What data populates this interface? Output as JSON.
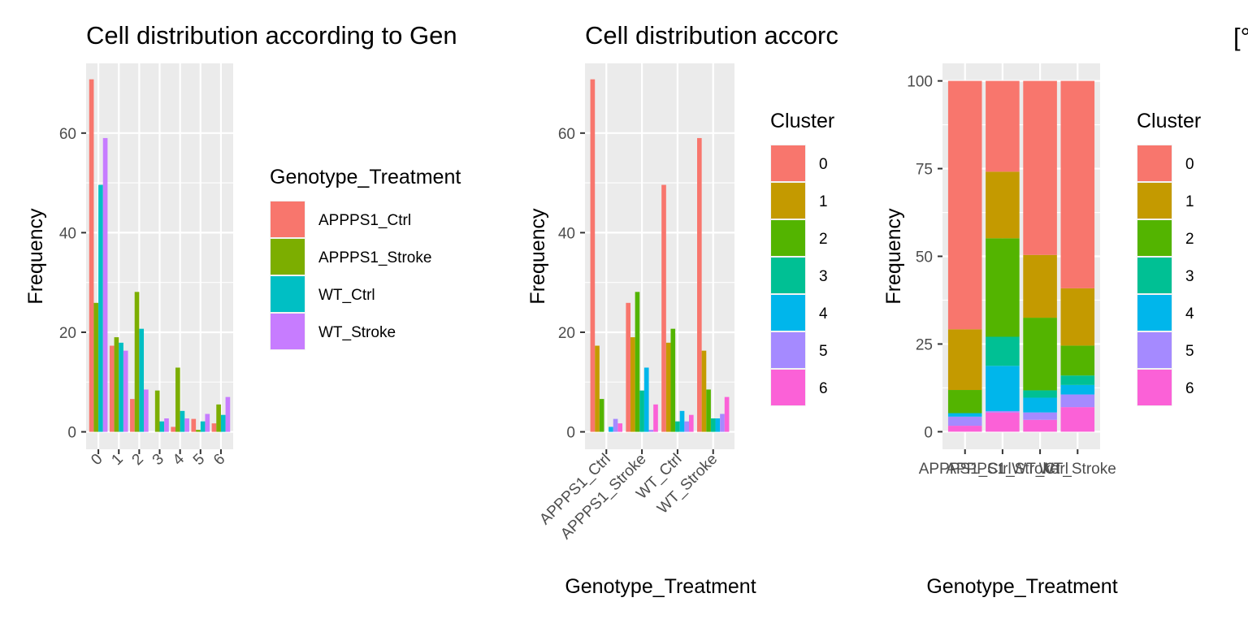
{
  "chart_data": [
    {
      "type": "bar",
      "position": "dodge",
      "title": "Cell distribution according to Gen",
      "xlabel": "",
      "ylabel": "Frequency",
      "ylim": [
        -3.5,
        74
      ],
      "yticks": [
        0,
        20,
        40,
        60
      ],
      "categories": [
        "0",
        "1",
        "2",
        "3",
        "4",
        "5",
        "6"
      ],
      "legend_title": "Genotype_Treatment",
      "series": [
        {
          "name": "APPPS1_Ctrl",
          "color": "#F8766D",
          "values": [
            70.8,
            17.3,
            6.6,
            0.0,
            1.0,
            2.6,
            1.7
          ]
        },
        {
          "name": "APPPS1_Stroke",
          "color": "#7CAE00",
          "values": [
            25.9,
            19.0,
            28.1,
            8.3,
            12.9,
            0.4,
            5.5
          ]
        },
        {
          "name": "WT_Ctrl",
          "color": "#00BFC4",
          "values": [
            49.6,
            17.9,
            20.7,
            2.1,
            4.2,
            2.1,
            3.4
          ]
        },
        {
          "name": "WT_Stroke",
          "color": "#C77CFF",
          "values": [
            59.0,
            16.3,
            8.5,
            2.7,
            2.7,
            3.6,
            7.0
          ]
        }
      ]
    },
    {
      "type": "bar",
      "position": "dodge",
      "title": "Cell distribution accorc",
      "xlabel": "Genotype_Treatment",
      "ylabel": "Frequency",
      "ylim": [
        -3.5,
        74
      ],
      "yticks": [
        0,
        20,
        40,
        60
      ],
      "categories": [
        "APPPS1_Ctrl",
        "APPPS1_Stroke",
        "WT_Ctrl",
        "WT_Stroke"
      ],
      "legend_title": "Cluster",
      "series": [
        {
          "name": "0",
          "color": "#F8766D",
          "values": [
            70.8,
            25.9,
            49.6,
            59.0
          ]
        },
        {
          "name": "1",
          "color": "#C49A00",
          "values": [
            17.3,
            19.0,
            17.9,
            16.3
          ]
        },
        {
          "name": "2",
          "color": "#53B400",
          "values": [
            6.6,
            28.1,
            20.7,
            8.5
          ]
        },
        {
          "name": "3",
          "color": "#00C094",
          "values": [
            0.0,
            8.3,
            2.1,
            2.7
          ]
        },
        {
          "name": "4",
          "color": "#00B6EB",
          "values": [
            1.0,
            12.9,
            4.2,
            2.7
          ]
        },
        {
          "name": "5",
          "color": "#A58AFF",
          "values": [
            2.6,
            0.4,
            2.1,
            3.6
          ]
        },
        {
          "name": "6",
          "color": "#FB61D7",
          "values": [
            1.7,
            5.5,
            3.4,
            7.0
          ]
        }
      ]
    },
    {
      "type": "bar",
      "position": "stack",
      "title": "",
      "xlabel": "Genotype_Treatment",
      "ylabel": "Frequency",
      "ylim": [
        -5,
        105
      ],
      "yticks": [
        0,
        25,
        50,
        75,
        100
      ],
      "categories": [
        "APPPS1_Ctrl",
        "APPPS1_Stroke",
        "WT_Ctrl",
        "WT_Stroke"
      ],
      "legend_title": "Cluster",
      "series": [
        {
          "name": "0",
          "color": "#F8766D",
          "values": [
            70.8,
            25.9,
            49.6,
            59.0
          ]
        },
        {
          "name": "1",
          "color": "#C49A00",
          "values": [
            17.3,
            19.0,
            17.9,
            16.3
          ]
        },
        {
          "name": "2",
          "color": "#53B400",
          "values": [
            6.6,
            28.1,
            20.7,
            8.5
          ]
        },
        {
          "name": "3",
          "color": "#00C094",
          "values": [
            0.0,
            8.3,
            2.1,
            2.7
          ]
        },
        {
          "name": "4",
          "color": "#00B6EB",
          "values": [
            1.0,
            12.9,
            4.2,
            2.7
          ]
        },
        {
          "name": "5",
          "color": "#A58AFF",
          "values": [
            2.6,
            0.4,
            2.1,
            3.6
          ]
        },
        {
          "name": "6",
          "color": "#FB61D7",
          "values": [
            1.7,
            5.5,
            3.4,
            7.0
          ]
        }
      ]
    }
  ],
  "page": {
    "corner_fragment": "[°"
  }
}
